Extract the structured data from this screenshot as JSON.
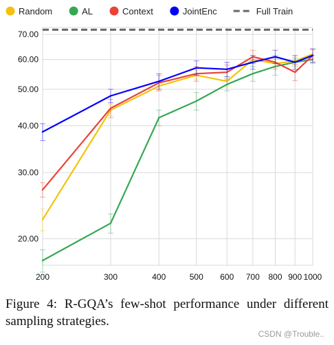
{
  "chart_data": {
    "type": "line",
    "x_scale": "log",
    "title": "",
    "xlabel": "",
    "ylabel": "",
    "x": [
      200,
      300,
      400,
      500,
      600,
      700,
      800,
      900,
      1000
    ],
    "x_tick_labels": [
      "200",
      "300",
      "400",
      "500",
      "600",
      "700",
      "800",
      "900",
      "1000"
    ],
    "y_ticks": [
      20,
      30,
      40,
      50,
      60,
      70
    ],
    "y_tick_labels": [
      "20.00",
      "30.00",
      "40.00",
      "50.00",
      "60.00",
      "70.00"
    ],
    "ylim": [
      17,
      73
    ],
    "grid": true,
    "legend_position": "top",
    "series": [
      {
        "name": "Random",
        "color": "#f4c20d",
        "values": [
          22.5,
          44.0,
          51.0,
          54.5,
          52.5,
          60.0,
          58.5,
          59.5,
          62.0
        ],
        "errors": [
          1.5,
          1.5,
          1.5,
          1.5,
          1.5,
          1.5,
          1.5,
          1.5,
          1.5
        ]
      },
      {
        "name": "AL",
        "color": "#34a853",
        "values": [
          17.5,
          22.0,
          42.0,
          46.5,
          51.5,
          55.0,
          57.5,
          59.0,
          60.0
        ],
        "errors": [
          1.2,
          1.3,
          2.0,
          2.5,
          2.0,
          2.5,
          3.0,
          1.5,
          1.5
        ]
      },
      {
        "name": "Context",
        "color": "#ea4335",
        "values": [
          27.0,
          44.5,
          52.0,
          55.0,
          55.5,
          61.0,
          59.0,
          55.5,
          61.5
        ],
        "errors": [
          1.2,
          2.5,
          2.5,
          2.5,
          2.5,
          2.5,
          2.5,
          2.8,
          2.5
        ]
      },
      {
        "name": "JointEnc",
        "color": "#0000ff",
        "values": [
          38.5,
          48.0,
          52.5,
          57.0,
          56.5,
          59.0,
          61.0,
          59.0,
          61.5
        ],
        "errors": [
          2.0,
          2.0,
          2.5,
          2.5,
          2.5,
          2.5,
          2.5,
          2.5,
          2.5
        ]
      }
    ],
    "reference_line": {
      "name": "Full Train",
      "value": 72.0,
      "color": "#666666",
      "style": "dashed"
    }
  },
  "caption": "Figure 4: R-GQA’s few-shot performance under different sampling strategies.",
  "watermark": "CSDN @Trouble.."
}
